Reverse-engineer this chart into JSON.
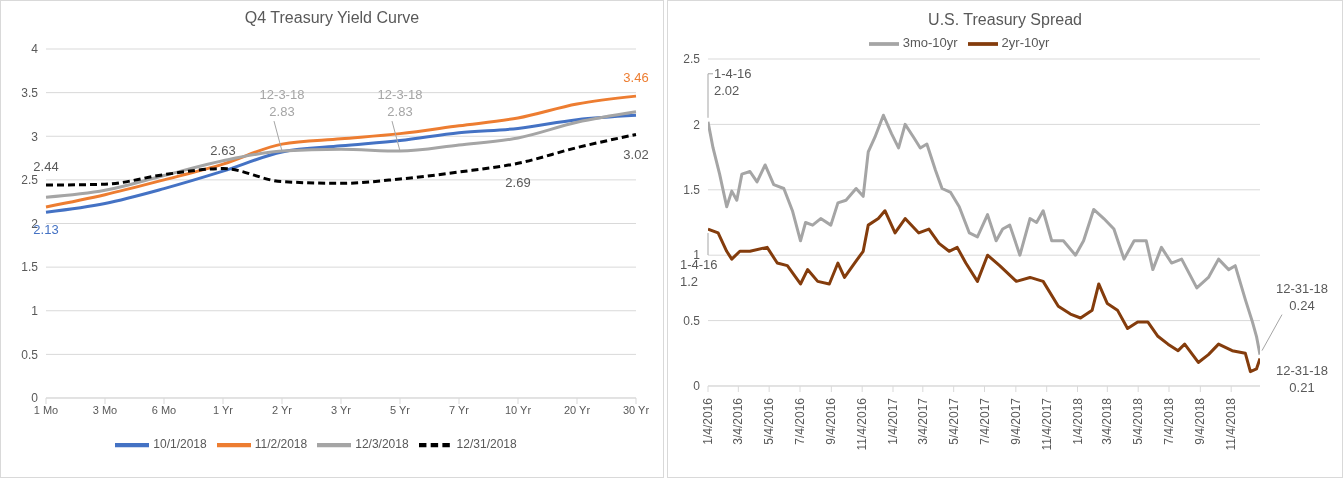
{
  "chart_data": [
    {
      "type": "line",
      "title": "Q4 Treasury Yield Curve",
      "categories": [
        "1 Mo",
        "3 Mo",
        "6 Mo",
        "1 Yr",
        "2 Yr",
        "3 Yr",
        "5 Yr",
        "7 Yr",
        "10 Yr",
        "20 Yr",
        "30 Yr"
      ],
      "series": [
        {
          "name": "10/1/2018",
          "color": "#4472c4",
          "values": [
            2.13,
            2.23,
            2.4,
            2.6,
            2.82,
            2.89,
            2.95,
            3.04,
            3.09,
            3.19,
            3.24
          ],
          "value_labels": [
            "2.13",
            null,
            null,
            null,
            null,
            null,
            null,
            null,
            null,
            null,
            null
          ]
        },
        {
          "name": "11/2/2018",
          "color": "#ed7d31",
          "values": [
            2.19,
            2.33,
            2.5,
            2.68,
            2.91,
            2.97,
            3.03,
            3.12,
            3.21,
            3.37,
            3.46
          ],
          "value_labels": [
            null,
            null,
            null,
            null,
            null,
            null,
            null,
            null,
            null,
            null,
            "3.46"
          ]
        },
        {
          "name": "12/3/2018",
          "color": "#a5a5a5",
          "values": [
            2.3,
            2.38,
            2.55,
            2.72,
            2.83,
            2.85,
            2.83,
            2.9,
            2.98,
            3.16,
            3.28
          ],
          "value_labels": [
            null,
            null,
            null,
            null,
            "12-3-18\n2.83",
            null,
            "12-3-18\n2.83",
            null,
            null,
            null,
            null
          ]
        },
        {
          "name": "12/31/2018",
          "color": "#000000",
          "line_style": "dashed",
          "values": [
            2.44,
            2.45,
            2.56,
            2.63,
            2.48,
            2.46,
            2.51,
            2.59,
            2.69,
            2.87,
            3.02
          ],
          "value_labels": [
            "2.44",
            null,
            null,
            "2.63",
            null,
            null,
            null,
            null,
            "2.69",
            null,
            "3.02"
          ]
        }
      ],
      "ylim": [
        0,
        4
      ],
      "yticks": [
        0,
        0.5,
        1,
        1.5,
        2,
        2.5,
        3,
        3.5,
        4
      ],
      "grid": "y",
      "legend": "bottom",
      "line_style": "solid",
      "marker": "none"
    },
    {
      "type": "line",
      "title": "U.S. Treasury Spread",
      "series": [
        {
          "name": "3mo-10yr",
          "color": "#a5a5a5",
          "x": [
            "2016-01-04",
            "2016-01-14",
            "2016-01-27",
            "2016-02-10",
            "2016-02-20",
            "2016-03-01",
            "2016-03-11",
            "2016-03-27",
            "2016-04-10",
            "2016-04-26",
            "2016-05-13",
            "2016-06-02",
            "2016-06-19",
            "2016-07-05",
            "2016-07-15",
            "2016-07-29",
            "2016-08-14",
            "2016-09-03",
            "2016-09-17",
            "2016-10-03",
            "2016-10-23",
            "2016-11-06",
            "2016-11-16",
            "2016-11-29",
            "2016-12-16",
            "2017-01-01",
            "2017-01-15",
            "2017-01-28",
            "2017-02-14",
            "2017-02-27",
            "2017-03-12",
            "2017-03-29",
            "2017-04-11",
            "2017-04-28",
            "2017-05-15",
            "2017-06-04",
            "2017-06-20",
            "2017-07-10",
            "2017-07-27",
            "2017-08-09",
            "2017-08-23",
            "2017-09-12",
            "2017-10-02",
            "2017-10-15",
            "2017-10-28",
            "2017-11-14",
            "2017-12-07",
            "2017-12-31",
            "2018-01-16",
            "2018-02-05",
            "2018-02-25",
            "2018-03-17",
            "2018-04-06",
            "2018-04-26",
            "2018-05-20",
            "2018-06-02",
            "2018-06-19",
            "2018-07-09",
            "2018-07-29",
            "2018-08-28",
            "2018-09-20",
            "2018-10-10",
            "2018-10-30",
            "2018-11-12",
            "2018-12-02",
            "2018-12-16",
            "2018-12-24",
            "2018-12-31"
          ],
          "values": [
            2.02,
            1.82,
            1.62,
            1.37,
            1.49,
            1.42,
            1.62,
            1.64,
            1.56,
            1.69,
            1.54,
            1.51,
            1.34,
            1.11,
            1.25,
            1.23,
            1.28,
            1.23,
            1.4,
            1.42,
            1.51,
            1.45,
            1.79,
            1.9,
            2.07,
            1.93,
            1.82,
            2.0,
            1.9,
            1.82,
            1.85,
            1.65,
            1.51,
            1.48,
            1.37,
            1.17,
            1.14,
            1.31,
            1.11,
            1.2,
            1.23,
            1.0,
            1.28,
            1.25,
            1.34,
            1.11,
            1.11,
            1.0,
            1.11,
            1.35,
            1.28,
            1.2,
            0.97,
            1.11,
            1.11,
            0.89,
            1.06,
            0.94,
            0.97,
            0.75,
            0.83,
            0.97,
            0.89,
            0.92,
            0.66,
            0.49,
            0.38,
            0.24
          ]
        },
        {
          "name": "2yr-10yr",
          "color": "#843c0c",
          "x": [
            "2016-01-04",
            "2016-01-24",
            "2016-02-10",
            "2016-02-20",
            "2016-03-07",
            "2016-03-27",
            "2016-04-30",
            "2016-05-20",
            "2016-06-09",
            "2016-07-05",
            "2016-07-19",
            "2016-08-08",
            "2016-08-31",
            "2016-09-17",
            "2016-09-30",
            "2016-10-20",
            "2016-11-06",
            "2016-11-16",
            "2016-12-06",
            "2016-12-19",
            "2017-01-08",
            "2017-01-28",
            "2017-02-24",
            "2017-03-16",
            "2017-04-05",
            "2017-04-25",
            "2017-05-11",
            "2017-05-28",
            "2017-06-20",
            "2017-07-10",
            "2017-08-03",
            "2017-09-05",
            "2017-10-02",
            "2017-10-28",
            "2017-11-27",
            "2017-12-21",
            "2018-01-10",
            "2018-02-02",
            "2018-02-15",
            "2018-03-04",
            "2018-03-24",
            "2018-04-13",
            "2018-05-03",
            "2018-05-23",
            "2018-06-12",
            "2018-07-02",
            "2018-07-22",
            "2018-08-04",
            "2018-08-31",
            "2018-09-20",
            "2018-10-10",
            "2018-11-06",
            "2018-12-02",
            "2018-12-12",
            "2018-12-24",
            "2018-12-31"
          ],
          "values": [
            1.2,
            1.17,
            1.03,
            0.97,
            1.03,
            1.03,
            1.06,
            0.94,
            0.92,
            0.78,
            0.89,
            0.8,
            0.78,
            0.94,
            0.83,
            0.94,
            1.03,
            1.23,
            1.28,
            1.34,
            1.17,
            1.28,
            1.17,
            1.2,
            1.09,
            1.03,
            1.06,
            0.94,
            0.8,
            1.0,
            0.92,
            0.8,
            0.83,
            0.8,
            0.61,
            0.55,
            0.52,
            0.58,
            0.78,
            0.63,
            0.58,
            0.44,
            0.49,
            0.49,
            0.38,
            0.32,
            0.27,
            0.32,
            0.18,
            0.24,
            0.32,
            0.27,
            0.25,
            0.11,
            0.13,
            0.21
          ]
        }
      ],
      "xlim": [
        "2016-01-04",
        "2018-12-31"
      ],
      "xticks": [
        {
          "value": "2016-01-04",
          "label": "1/4/2016"
        },
        {
          "value": "2016-03-04",
          "label": "3/4/2016"
        },
        {
          "value": "2016-05-04",
          "label": "5/4/2016"
        },
        {
          "value": "2016-07-04",
          "label": "7/4/2016"
        },
        {
          "value": "2016-09-04",
          "label": "9/4/2016"
        },
        {
          "value": "2016-11-04",
          "label": "11/4/2016"
        },
        {
          "value": "2017-01-04",
          "label": "1/4/2017"
        },
        {
          "value": "2017-03-04",
          "label": "3/4/2017"
        },
        {
          "value": "2017-05-04",
          "label": "5/4/2017"
        },
        {
          "value": "2017-07-04",
          "label": "7/4/2017"
        },
        {
          "value": "2017-09-04",
          "label": "9/4/2017"
        },
        {
          "value": "2017-11-04",
          "label": "11/4/2017"
        },
        {
          "value": "2018-01-04",
          "label": "1/4/2018"
        },
        {
          "value": "2018-03-04",
          "label": "3/4/2018"
        },
        {
          "value": "2018-05-04",
          "label": "5/4/2018"
        },
        {
          "value": "2018-07-04",
          "label": "7/4/2018"
        },
        {
          "value": "2018-09-04",
          "label": "9/4/2018"
        },
        {
          "value": "2018-11-04",
          "label": "11/4/2018"
        }
      ],
      "ylim": [
        0,
        2.5
      ],
      "yticks": [
        0,
        0.5,
        1,
        1.5,
        2,
        2.5
      ],
      "grid": "y",
      "legend": "top",
      "line_style": "solid",
      "marker": "none",
      "annotations": [
        {
          "text": "1-4-16\n2.02",
          "x": "2016-01-04",
          "y": 2.02
        },
        {
          "text": "1-4-16\n1.2",
          "x": "2016-01-04",
          "y": 1.2
        },
        {
          "text": "12-31-18\n0.24",
          "x": "2018-12-31",
          "y": 0.24
        },
        {
          "text": "12-31-18\n0.21",
          "x": "2018-12-31",
          "y": 0.21
        }
      ]
    }
  ]
}
